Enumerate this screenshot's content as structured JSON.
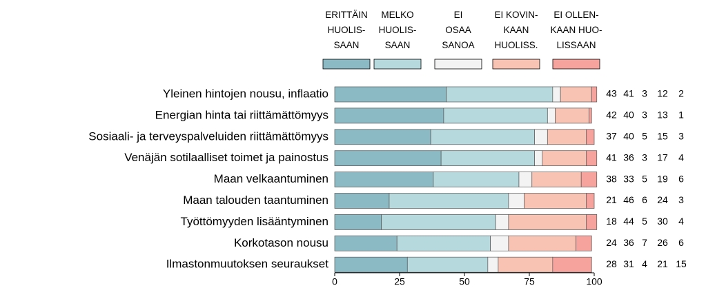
{
  "chart_data": {
    "type": "stacked-bar-horizontal",
    "categories": [
      "Yleinen hintojen nousu, inflaatio",
      "Energian hinta tai riittämättömyys",
      "Sosiaali- ja terveyspalveluiden riittämättömyys",
      "Venäjän sotilaalliset toimet ja painostus",
      "Maan velkaantuminen",
      "Maan talouden taantuminen",
      "Työttömyyden lisääntyminen",
      "Korkotason nousu",
      "Ilmastonmuutoksen seuraukset"
    ],
    "series": [
      {
        "name": "ERITTÄIN\nHUOLIS-\nSAAN",
        "color": "#8bb9c4",
        "values": [
          43,
          42,
          37,
          41,
          38,
          21,
          18,
          24,
          28
        ]
      },
      {
        "name": "MELKO\nHUOLIS-\nSAAN",
        "color": "#b5d9dc",
        "values": [
          41,
          40,
          40,
          36,
          33,
          46,
          44,
          36,
          31
        ]
      },
      {
        "name": "EI\nOSAA\nSANOA",
        "color": "#f3f3f3",
        "values": [
          3,
          3,
          5,
          3,
          5,
          6,
          5,
          7,
          4
        ]
      },
      {
        "name": "EI KOVIN-\nKAAN\nHUOLISS.",
        "color": "#f9c3b3",
        "values": [
          12,
          13,
          15,
          17,
          19,
          24,
          30,
          26,
          21
        ]
      },
      {
        "name": "EI OLLEN-\nKAAN HUO-\nLISSAAN",
        "color": "#f7a39d",
        "values": [
          2,
          1,
          3,
          4,
          6,
          3,
          4,
          6,
          15
        ]
      }
    ],
    "xlim": [
      0,
      100
    ],
    "xticks": [
      0,
      25,
      50,
      75,
      100
    ]
  }
}
